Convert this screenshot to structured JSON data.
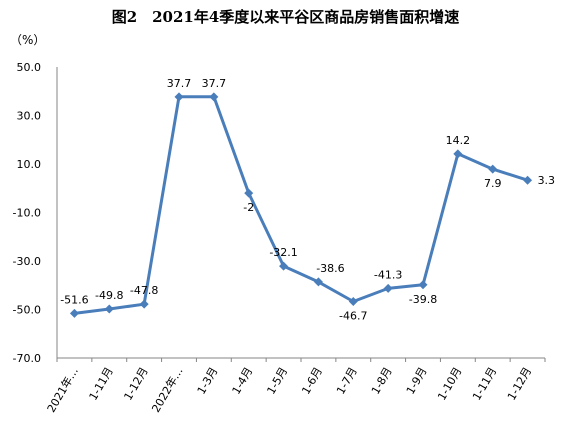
{
  "chart_data": {
    "type": "line",
    "title": "图2　2021年4季度以来平谷区商品房销售面积增速",
    "ylabel": "（%）",
    "xlabel": "",
    "ylim": [
      -70,
      50
    ],
    "yticks": [
      "50.0",
      "30.0",
      "10.0",
      "-10.0",
      "-30.0",
      "-50.0",
      "-70.0"
    ],
    "categories": [
      "2021年…",
      "1-11月",
      "1-12月",
      "2022年…",
      "1-3月",
      "1-4月",
      "1-5月",
      "1-6月",
      "1-7月",
      "1-8月",
      "1-9月",
      "1-10月",
      "1-11月",
      "1-12月"
    ],
    "values": [
      -51.6,
      -49.8,
      -47.8,
      37.7,
      37.7,
      -2,
      -32.1,
      -38.6,
      -46.7,
      -41.3,
      -39.8,
      14.2,
      7.9,
      3.3
    ],
    "data_labels": [
      "-51.6",
      "-49.8",
      "-47.8",
      "37.7",
      "37.7",
      "-2",
      "-32.1",
      "-38.6",
      "-46.7",
      "-41.3",
      "-39.8",
      "14.2",
      "7.9",
      "3.3"
    ],
    "grid": false,
    "legend": "none",
    "line_color": "#4a7ebb"
  }
}
